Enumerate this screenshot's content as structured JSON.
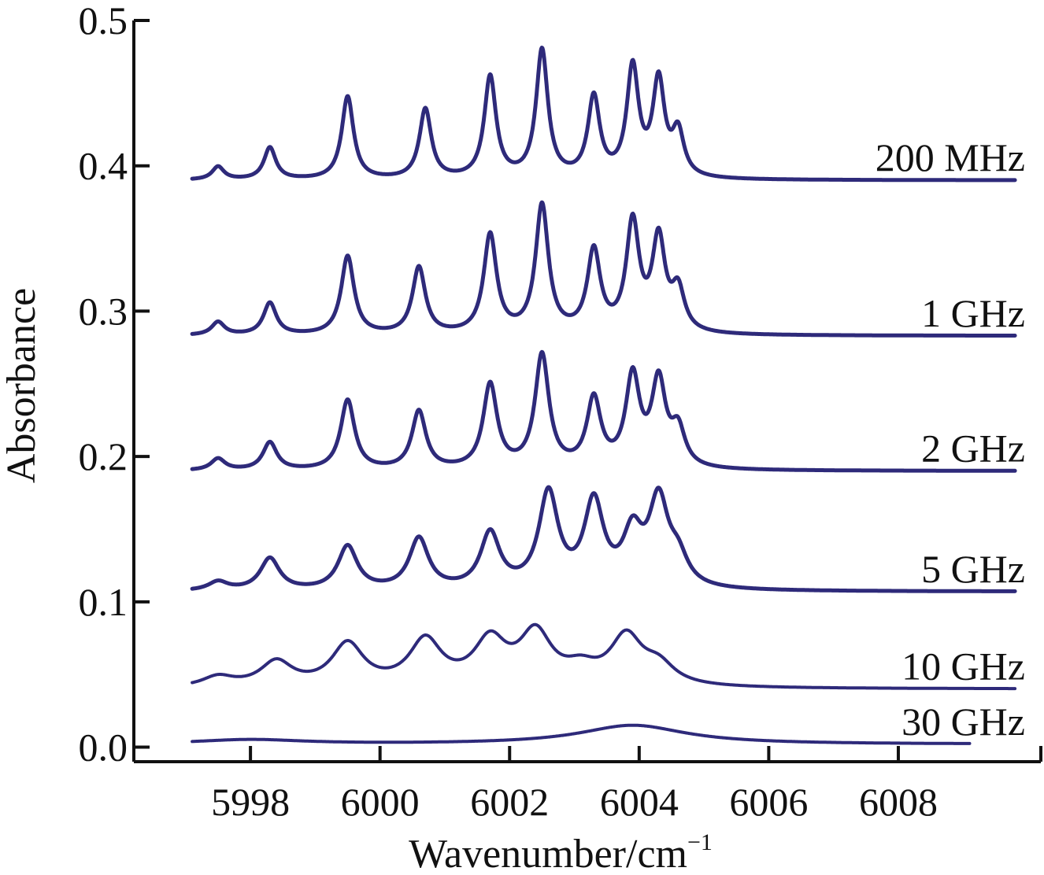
{
  "chart_data": {
    "type": "line",
    "title": "",
    "xlabel": "Wavenumber/cm",
    "xlabel_superscript": "−1",
    "ylabel": "Absorbance",
    "xlim": [
      5996.2,
      6010.2
    ],
    "ylim": [
      -0.01,
      0.5
    ],
    "x_ticks": [
      5998,
      6000,
      6002,
      6004,
      6006,
      6008
    ],
    "x_tick_labels": [
      "5998",
      "6000",
      "6002",
      "6004",
      "6006",
      "6008"
    ],
    "y_ticks": [
      0.0,
      0.1,
      0.2,
      0.3,
      0.4,
      0.5
    ],
    "y_tick_labels": [
      "0.0",
      "0.1",
      "0.2",
      "0.3",
      "0.4",
      "0.5"
    ],
    "grid": false,
    "legend": "none",
    "line_color": "#2e2a7a",
    "series": [
      {
        "name": "200 MHz",
        "baseline": 0.39,
        "x_end": 6009.8,
        "peaks": [
          [
            5997.5,
            0.009
          ],
          [
            5998.3,
            0.022
          ],
          [
            5999.5,
            0.057
          ],
          [
            6000.7,
            0.048
          ],
          [
            6001.7,
            0.07
          ],
          [
            6002.5,
            0.088
          ],
          [
            6003.3,
            0.055
          ],
          [
            6003.9,
            0.075
          ],
          [
            6004.3,
            0.065
          ],
          [
            6004.6,
            0.03
          ]
        ],
        "width": 0.11
      },
      {
        "name": "1 GHz",
        "baseline": 0.283,
        "x_end": 6009.8,
        "peaks": [
          [
            5997.5,
            0.009
          ],
          [
            5998.3,
            0.022
          ],
          [
            5999.5,
            0.054
          ],
          [
            6000.6,
            0.046
          ],
          [
            6001.7,
            0.068
          ],
          [
            6002.5,
            0.088
          ],
          [
            6003.3,
            0.056
          ],
          [
            6003.9,
            0.075
          ],
          [
            6004.3,
            0.063
          ],
          [
            6004.6,
            0.028
          ]
        ],
        "width": 0.12
      },
      {
        "name": "2 GHz",
        "baseline": 0.19,
        "x_end": 6009.8,
        "peaks": [
          [
            5997.5,
            0.008
          ],
          [
            5998.3,
            0.019
          ],
          [
            5999.5,
            0.048
          ],
          [
            6000.6,
            0.04
          ],
          [
            6001.7,
            0.058
          ],
          [
            6002.5,
            0.078
          ],
          [
            6003.3,
            0.047
          ],
          [
            6003.9,
            0.062
          ],
          [
            6004.3,
            0.058
          ],
          [
            6004.6,
            0.025
          ]
        ],
        "width": 0.13
      },
      {
        "name": "5 GHz",
        "baseline": 0.107,
        "x_end": 6009.8,
        "peaks": [
          [
            5997.5,
            0.006
          ],
          [
            5998.3,
            0.022
          ],
          [
            5999.5,
            0.03
          ],
          [
            6000.6,
            0.035
          ],
          [
            6001.7,
            0.038
          ],
          [
            6002.6,
            0.065
          ],
          [
            6003.3,
            0.058
          ],
          [
            6003.9,
            0.035
          ],
          [
            6004.3,
            0.058
          ],
          [
            6004.6,
            0.018
          ]
        ],
        "width": 0.18
      },
      {
        "name": "10 GHz",
        "baseline": 0.04,
        "x_end": 6009.8,
        "peaks": [
          [
            5997.5,
            0.007
          ],
          [
            5998.4,
            0.017
          ],
          [
            5999.5,
            0.029
          ],
          [
            6000.7,
            0.031
          ],
          [
            6001.7,
            0.03
          ],
          [
            6002.4,
            0.035
          ],
          [
            6003.1,
            0.01
          ],
          [
            6003.8,
            0.033
          ],
          [
            6004.3,
            0.013
          ]
        ],
        "width": 0.3
      },
      {
        "name": "30 GHz",
        "baseline": 0.002,
        "x_end": 6009.1,
        "peaks": [
          [
            5998.0,
            0.003
          ],
          [
            6003.9,
            0.013
          ]
        ],
        "width": 1.0
      }
    ]
  }
}
